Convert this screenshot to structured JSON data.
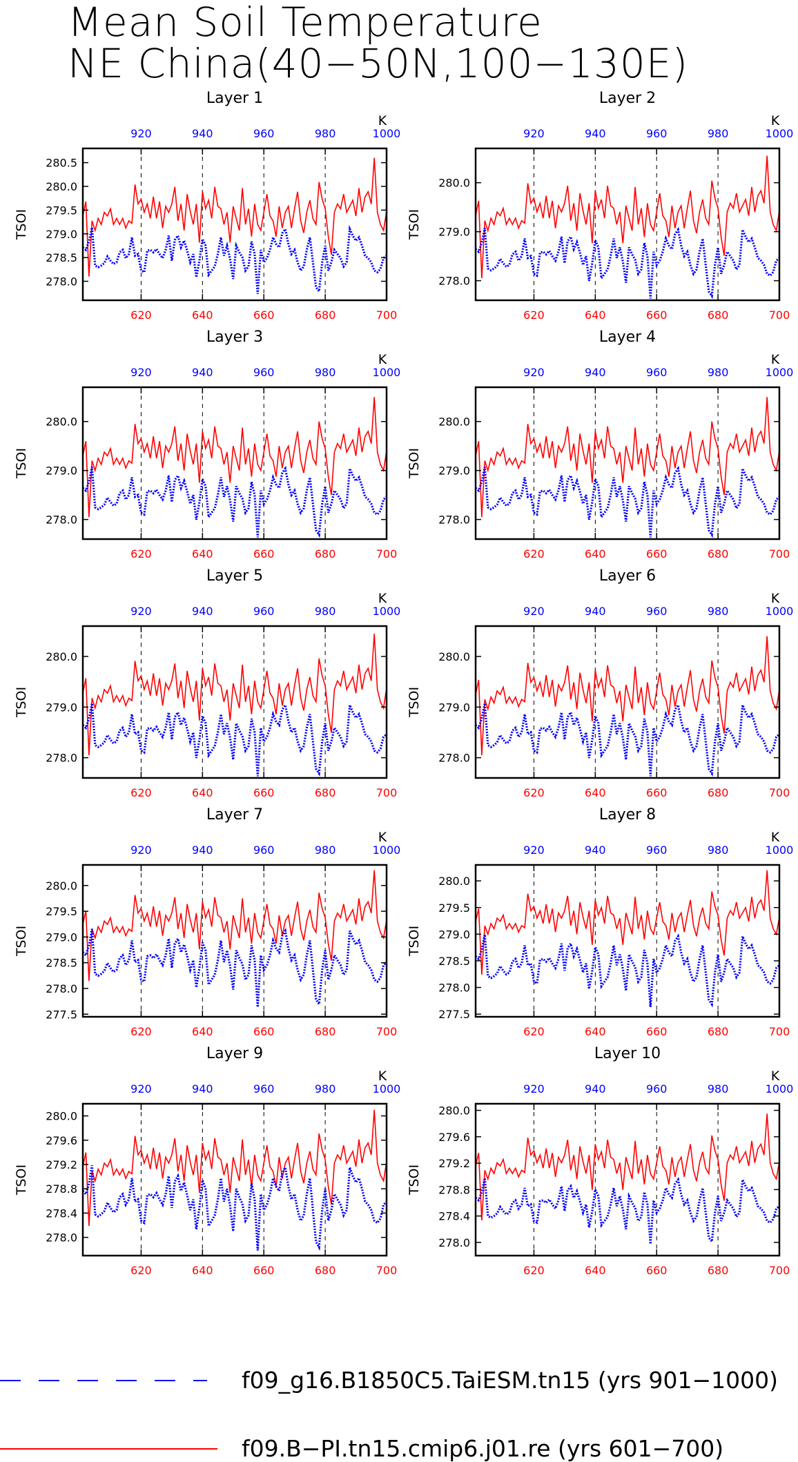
{
  "title": [
    "Mean Soil Temperature",
    "NE China(40−50N,100−130E)"
  ],
  "colors": {
    "series_a": "#0000ff",
    "series_b": "#ff0000",
    "bottom_ticks": "#ff0000",
    "top_ticks": "#0000ff"
  },
  "legend": [
    {
      "label": "f09_g16.B1850C5.TaiESM.tn15 (yrs 901−1000)",
      "color": "#0000ff",
      "style": "dashed"
    },
    {
      "label": "f09.B−PI.tn15.cmip6.j01.re (yrs 601−700)",
      "color": "#ff0000",
      "style": "solid"
    }
  ],
  "chart_data": [
    {
      "type": "line",
      "title": "Layer 1",
      "ylabel": "TSOI",
      "top_axis_label": "K",
      "x_bottom": {
        "range": [
          601,
          700
        ],
        "ticks": [
          620,
          640,
          660,
          680,
          700
        ]
      },
      "x_top": {
        "range": [
          901,
          1000
        ],
        "ticks": [
          920,
          940,
          960,
          980,
          1000
        ]
      },
      "ylim": [
        277.6,
        280.8
      ],
      "yticks": [
        278.0,
        278.5,
        279.0,
        279.5,
        280.0,
        280.5
      ],
      "vgrid_dashed": true,
      "series": [
        {
          "legend": 0,
          "offset": 0.0,
          "min": 277.7,
          "max": 279.45
        },
        {
          "legend": 1,
          "offset": 0.0,
          "min": 278.05,
          "max": 280.6
        }
      ]
    },
    {
      "type": "line",
      "title": "Layer 2",
      "ylabel": "TSOI",
      "top_axis_label": "K",
      "x_bottom": {
        "range": [
          601,
          700
        ],
        "ticks": [
          620,
          640,
          660,
          680,
          700
        ]
      },
      "x_top": {
        "range": [
          901,
          1000
        ],
        "ticks": [
          920,
          940,
          960,
          980,
          1000
        ]
      },
      "ylim": [
        277.6,
        280.7
      ],
      "yticks": [
        278.0,
        279.0,
        280.0
      ],
      "vgrid_dashed": true,
      "series": [
        {
          "legend": 0,
          "offset": 0.0,
          "min": 277.6,
          "max": 279.4
        },
        {
          "legend": 1,
          "offset": 0.0,
          "min": 278.0,
          "max": 280.55
        }
      ]
    },
    {
      "type": "line",
      "title": "Layer 3",
      "ylabel": "TSOI",
      "top_axis_label": "K",
      "x_bottom": {
        "range": [
          601,
          700
        ],
        "ticks": [
          620,
          640,
          660,
          680,
          700
        ]
      },
      "x_top": {
        "range": [
          901,
          1000
        ],
        "ticks": [
          920,
          940,
          960,
          980,
          1000
        ]
      },
      "ylim": [
        277.6,
        280.7
      ],
      "yticks": [
        278.0,
        279.0,
        280.0
      ],
      "vgrid_dashed": true,
      "series": [
        {
          "legend": 0,
          "offset": 0.0,
          "min": 277.6,
          "max": 279.4
        },
        {
          "legend": 1,
          "offset": 0.0,
          "min": 278.0,
          "max": 280.5
        }
      ]
    },
    {
      "type": "line",
      "title": "Layer 4",
      "ylabel": "TSOI",
      "top_axis_label": "K",
      "x_bottom": {
        "range": [
          601,
          700
        ],
        "ticks": [
          620,
          640,
          660,
          680,
          700
        ]
      },
      "x_top": {
        "range": [
          901,
          1000
        ],
        "ticks": [
          920,
          940,
          960,
          980,
          1000
        ]
      },
      "ylim": [
        277.6,
        280.7
      ],
      "yticks": [
        278.0,
        279.0,
        280.0
      ],
      "vgrid_dashed": true,
      "series": [
        {
          "legend": 0,
          "offset": 0.0,
          "min": 277.6,
          "max": 279.4
        },
        {
          "legend": 1,
          "offset": 0.0,
          "min": 278.0,
          "max": 280.5
        }
      ]
    },
    {
      "type": "line",
      "title": "Layer 5",
      "ylabel": "TSOI",
      "top_axis_label": "K",
      "x_bottom": {
        "range": [
          601,
          700
        ],
        "ticks": [
          620,
          640,
          660,
          680,
          700
        ]
      },
      "x_top": {
        "range": [
          901,
          1000
        ],
        "ticks": [
          920,
          940,
          960,
          980,
          1000
        ]
      },
      "ylim": [
        277.6,
        280.6
      ],
      "yticks": [
        278.0,
        279.0,
        280.0
      ],
      "vgrid_dashed": true,
      "series": [
        {
          "legend": 0,
          "offset": 0.0,
          "min": 277.6,
          "max": 279.4
        },
        {
          "legend": 1,
          "offset": 0.0,
          "min": 278.0,
          "max": 280.45
        }
      ]
    },
    {
      "type": "line",
      "title": "Layer 6",
      "ylabel": "TSOI",
      "top_axis_label": "K",
      "x_bottom": {
        "range": [
          601,
          700
        ],
        "ticks": [
          620,
          640,
          660,
          680,
          700
        ]
      },
      "x_top": {
        "range": [
          901,
          1000
        ],
        "ticks": [
          920,
          940,
          960,
          980,
          1000
        ]
      },
      "ylim": [
        277.6,
        280.6
      ],
      "yticks": [
        278.0,
        279.0,
        280.0
      ],
      "vgrid_dashed": true,
      "series": [
        {
          "legend": 0,
          "offset": 0.0,
          "min": 277.6,
          "max": 279.4
        },
        {
          "legend": 1,
          "offset": 0.0,
          "min": 278.0,
          "max": 280.4
        }
      ]
    },
    {
      "type": "line",
      "title": "Layer 7",
      "ylabel": "TSOI",
      "top_axis_label": "K",
      "x_bottom": {
        "range": [
          601,
          700
        ],
        "ticks": [
          620,
          640,
          660,
          680,
          700
        ]
      },
      "x_top": {
        "range": [
          901,
          1000
        ],
        "ticks": [
          920,
          940,
          960,
          980,
          1000
        ]
      },
      "ylim": [
        277.45,
        280.4
      ],
      "yticks": [
        277.5,
        278.0,
        278.5,
        279.0,
        279.5,
        280.0
      ],
      "vgrid_dashed": true,
      "series": [
        {
          "legend": 0,
          "offset": 0.0,
          "min": 277.6,
          "max": 279.5
        },
        {
          "legend": 1,
          "offset": 0.0,
          "min": 278.1,
          "max": 280.3
        }
      ]
    },
    {
      "type": "line",
      "title": "Layer 8",
      "ylabel": "TSOI",
      "top_axis_label": "K",
      "x_bottom": {
        "range": [
          601,
          700
        ],
        "ticks": [
          620,
          640,
          660,
          680,
          700
        ]
      },
      "x_top": {
        "range": [
          901,
          1000
        ],
        "ticks": [
          920,
          940,
          960,
          980,
          1000
        ]
      },
      "ylim": [
        277.45,
        280.3
      ],
      "yticks": [
        277.5,
        278.0,
        278.5,
        279.0,
        279.5,
        280.0
      ],
      "vgrid_dashed": true,
      "series": [
        {
          "legend": 0,
          "offset": 0.0,
          "min": 277.6,
          "max": 279.3
        },
        {
          "legend": 1,
          "offset": 0.0,
          "min": 278.2,
          "max": 280.2
        }
      ]
    },
    {
      "type": "line",
      "title": "Layer 9",
      "ylabel": "TSOI",
      "top_axis_label": "K",
      "x_bottom": {
        "range": [
          601,
          700
        ],
        "ticks": [
          620,
          640,
          660,
          680,
          700
        ]
      },
      "x_top": {
        "range": [
          901,
          1000
        ],
        "ticks": [
          920,
          940,
          960,
          980,
          1000
        ]
      },
      "ylim": [
        277.7,
        280.2
      ],
      "yticks": [
        278.0,
        278.4,
        278.8,
        279.2,
        279.6,
        280.0
      ],
      "vgrid_dashed": true,
      "series": [
        {
          "legend": 0,
          "offset": 0.0,
          "min": 277.75,
          "max": 279.5
        },
        {
          "legend": 1,
          "offset": 0.0,
          "min": 278.15,
          "max": 280.1
        }
      ]
    },
    {
      "type": "line",
      "title": "Layer 10",
      "ylabel": "TSOI",
      "top_axis_label": "K",
      "x_bottom": {
        "range": [
          601,
          700
        ],
        "ticks": [
          620,
          640,
          660,
          680,
          700
        ]
      },
      "x_top": {
        "range": [
          901,
          1000
        ],
        "ticks": [
          920,
          940,
          960,
          980,
          1000
        ]
      },
      "ylim": [
        277.8,
        280.1
      ],
      "yticks": [
        278.0,
        278.4,
        278.8,
        279.2,
        279.6,
        280.0
      ],
      "vgrid_dashed": true,
      "series": [
        {
          "legend": 0,
          "offset": 0.0,
          "min": 277.95,
          "max": 279.2
        },
        {
          "legend": 1,
          "offset": 0.0,
          "min": 278.3,
          "max": 279.95
        }
      ]
    }
  ],
  "base_profile": {
    "series_a": [
      0.58,
      0.55,
      0.65,
      0.82,
      0.36,
      0.34,
      0.36,
      0.39,
      0.47,
      0.42,
      0.38,
      0.4,
      0.52,
      0.55,
      0.45,
      0.5,
      0.7,
      0.48,
      0.5,
      0.3,
      0.28,
      0.54,
      0.55,
      0.52,
      0.56,
      0.5,
      0.45,
      0.55,
      0.72,
      0.42,
      0.67,
      0.72,
      0.58,
      0.66,
      0.54,
      0.4,
      0.5,
      0.22,
      0.42,
      0.68,
      0.6,
      0.25,
      0.3,
      0.35,
      0.5,
      0.7,
      0.48,
      0.6,
      0.44,
      0.2,
      0.6,
      0.52,
      0.46,
      0.3,
      0.35,
      0.65,
      0.5,
      0.02,
      0.55,
      0.4,
      0.45,
      0.55,
      0.7,
      0.62,
      0.58,
      0.75,
      0.8,
      0.62,
      0.5,
      0.55,
      0.4,
      0.3,
      0.35,
      0.55,
      0.7,
      0.4,
      0.1,
      0.05,
      0.4,
      0.6,
      0.3,
      0.4,
      0.55,
      0.5,
      0.45,
      0.35,
      0.4,
      0.8,
      0.72,
      0.66,
      0.7,
      0.6,
      0.48,
      0.45,
      0.4,
      0.3,
      0.28,
      0.32,
      0.45,
      0.48
    ],
    "series_b": [
      0.52,
      0.64,
      0.02,
      0.48,
      0.4,
      0.5,
      0.45,
      0.55,
      0.52,
      0.58,
      0.45,
      0.5,
      0.45,
      0.5,
      0.42,
      0.48,
      0.46,
      0.78,
      0.62,
      0.66,
      0.55,
      0.62,
      0.5,
      0.68,
      0.5,
      0.64,
      0.42,
      0.6,
      0.55,
      0.62,
      0.76,
      0.48,
      0.62,
      0.4,
      0.7,
      0.56,
      0.45,
      0.62,
      0.3,
      0.72,
      0.58,
      0.65,
      0.5,
      0.76,
      0.6,
      0.58,
      0.45,
      0.55,
      0.3,
      0.6,
      0.5,
      0.4,
      0.75,
      0.45,
      0.58,
      0.35,
      0.62,
      0.45,
      0.4,
      0.55,
      0.7,
      0.52,
      0.48,
      0.35,
      0.6,
      0.42,
      0.55,
      0.6,
      0.42,
      0.58,
      0.72,
      0.48,
      0.38,
      0.55,
      0.65,
      0.5,
      0.45,
      0.8,
      0.66,
      0.58,
      0.35,
      0.2,
      0.55,
      0.62,
      0.58,
      0.7,
      0.55,
      0.6,
      0.65,
      0.52,
      0.75,
      0.55,
      0.68,
      0.72,
      0.62,
      1.0,
      0.55,
      0.45,
      0.4,
      0.56
    ]
  }
}
